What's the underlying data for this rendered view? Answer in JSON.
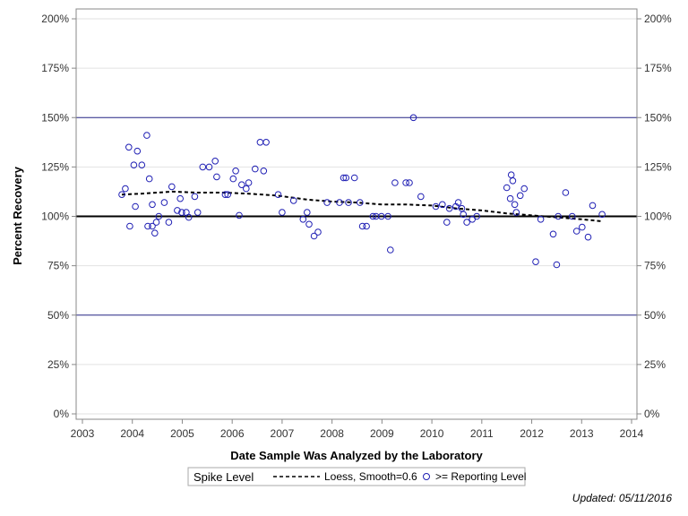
{
  "chart_data": {
    "type": "scatter",
    "xlabel": "Date Sample Was Analyzed by the Laboratory",
    "ylabel": "Percent Recovery",
    "xlim": [
      2003,
      2014
    ],
    "ylim": [
      0,
      200
    ],
    "x_ticks": [
      2003,
      2004,
      2005,
      2006,
      2007,
      2008,
      2009,
      2010,
      2011,
      2012,
      2013,
      2014
    ],
    "x_tick_labels": [
      "2003",
      "2004",
      "2005",
      "2006",
      "2007",
      "2008",
      "2009",
      "2010",
      "2011",
      "2012",
      "2013",
      "2014"
    ],
    "y_ticks": [
      0,
      25,
      50,
      75,
      100,
      125,
      150,
      175,
      200
    ],
    "y_tick_labels": [
      "0%",
      "25%",
      "50%",
      "75%",
      "100%",
      "125%",
      "150%",
      "175%",
      "200%"
    ],
    "grid": true,
    "reference_lines": [
      {
        "y": 100,
        "style": "thick"
      },
      {
        "y": 50,
        "style": "thin-blue"
      },
      {
        "y": 150,
        "style": "thin-blue"
      }
    ],
    "series": [
      {
        "name": ">= Reporting Level",
        "marker": "open-circle",
        "color": "#1f1fb4",
        "points": [
          [
            2003.79,
            111
          ],
          [
            2003.86,
            114
          ],
          [
            2003.93,
            135
          ],
          [
            2003.95,
            95
          ],
          [
            2004.03,
            126
          ],
          [
            2004.06,
            105
          ],
          [
            2004.1,
            133
          ],
          [
            2004.19,
            126
          ],
          [
            2004.29,
            141
          ],
          [
            2004.31,
            95
          ],
          [
            2004.34,
            119
          ],
          [
            2004.4,
            106
          ],
          [
            2004.4,
            95
          ],
          [
            2004.45,
            91.5
          ],
          [
            2004.48,
            97
          ],
          [
            2004.53,
            100
          ],
          [
            2004.64,
            107
          ],
          [
            2004.73,
            97
          ],
          [
            2004.79,
            115
          ],
          [
            2004.9,
            103
          ],
          [
            2004.96,
            109
          ],
          [
            2004.99,
            102
          ],
          [
            2005.08,
            102
          ],
          [
            2005.13,
            99.5
          ],
          [
            2005.25,
            110
          ],
          [
            2005.31,
            102
          ],
          [
            2005.41,
            125
          ],
          [
            2005.54,
            125
          ],
          [
            2005.66,
            128
          ],
          [
            2005.69,
            120
          ],
          [
            2005.86,
            111
          ],
          [
            2005.91,
            111
          ],
          [
            2006.02,
            119
          ],
          [
            2006.07,
            123
          ],
          [
            2006.14,
            100.5
          ],
          [
            2006.19,
            116
          ],
          [
            2006.28,
            114
          ],
          [
            2006.33,
            117
          ],
          [
            2006.46,
            124
          ],
          [
            2006.56,
            137.5
          ],
          [
            2006.63,
            123
          ],
          [
            2006.68,
            137.5
          ],
          [
            2006.92,
            111
          ],
          [
            2007.0,
            102
          ],
          [
            2007.23,
            108
          ],
          [
            2007.42,
            98.5
          ],
          [
            2007.5,
            102
          ],
          [
            2007.54,
            96
          ],
          [
            2007.64,
            90
          ],
          [
            2007.72,
            92
          ],
          [
            2007.9,
            107
          ],
          [
            2008.15,
            107
          ],
          [
            2008.23,
            119.5
          ],
          [
            2008.28,
            119.5
          ],
          [
            2008.33,
            107
          ],
          [
            2008.45,
            119.5
          ],
          [
            2008.56,
            107
          ],
          [
            2008.61,
            95
          ],
          [
            2008.69,
            95
          ],
          [
            2008.82,
            100
          ],
          [
            2008.88,
            100
          ],
          [
            2008.99,
            100
          ],
          [
            2009.12,
            100
          ],
          [
            2009.17,
            83
          ],
          [
            2009.26,
            117
          ],
          [
            2009.48,
            117
          ],
          [
            2009.55,
            117
          ],
          [
            2009.63,
            150
          ],
          [
            2009.78,
            110
          ],
          [
            2010.08,
            105
          ],
          [
            2010.21,
            106
          ],
          [
            2010.3,
            97
          ],
          [
            2010.35,
            104
          ],
          [
            2010.48,
            105
          ],
          [
            2010.53,
            107
          ],
          [
            2010.6,
            104
          ],
          [
            2010.63,
            101
          ],
          [
            2010.7,
            97
          ],
          [
            2010.81,
            98.5
          ],
          [
            2010.9,
            100
          ],
          [
            2011.5,
            114.5
          ],
          [
            2011.57,
            109
          ],
          [
            2011.59,
            121
          ],
          [
            2011.62,
            118
          ],
          [
            2011.66,
            106
          ],
          [
            2011.69,
            102
          ],
          [
            2011.77,
            110.5
          ],
          [
            2011.85,
            114
          ],
          [
            2012.08,
            77
          ],
          [
            2012.18,
            98.5
          ],
          [
            2012.43,
            91
          ],
          [
            2012.5,
            75.5
          ],
          [
            2012.53,
            100
          ],
          [
            2012.68,
            112
          ],
          [
            2012.81,
            100
          ],
          [
            2012.9,
            92.5
          ],
          [
            2013.01,
            94.5
          ],
          [
            2013.13,
            89.5
          ],
          [
            2013.22,
            105.5
          ],
          [
            2013.41,
            101
          ]
        ]
      },
      {
        "name": "Loess, Smooth=0.6",
        "style": "dashed",
        "color": "#000000",
        "points": [
          [
            2003.79,
            111
          ],
          [
            2004.2,
            111.5
          ],
          [
            2004.8,
            112.5
          ],
          [
            2005.3,
            112
          ],
          [
            2005.8,
            112
          ],
          [
            2006.3,
            111.5
          ],
          [
            2006.9,
            110.5
          ],
          [
            2007.5,
            108.5
          ],
          [
            2008.0,
            107.5
          ],
          [
            2008.5,
            107
          ],
          [
            2009.0,
            106
          ],
          [
            2009.5,
            106
          ],
          [
            2010.0,
            105.5
          ],
          [
            2010.5,
            104
          ],
          [
            2011.0,
            103
          ],
          [
            2011.5,
            101.5
          ],
          [
            2012.0,
            100.5
          ],
          [
            2012.5,
            99.5
          ],
          [
            2013.0,
            98.5
          ],
          [
            2013.41,
            97.5
          ]
        ]
      }
    ],
    "legend": {
      "title": "Spike Level",
      "placement": "bottom",
      "items": [
        {
          "label": "Loess, Smooth=0.6",
          "symbol": "dashed-line"
        },
        {
          "label": ">= Reporting Level",
          "symbol": "open-circle"
        }
      ]
    },
    "footnote": "Updated: 05/11/2016"
  }
}
